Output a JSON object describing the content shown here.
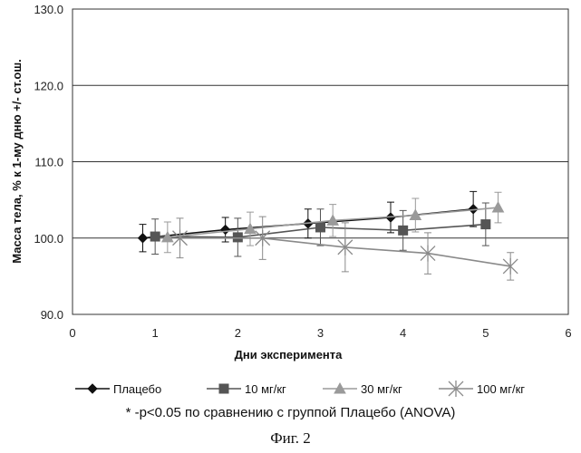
{
  "chart_data": {
    "type": "line",
    "title": "",
    "xlabel": "Дни эксперимента",
    "ylabel": "Масса тела, % к 1-му дню +/- ст.ош.",
    "xlim": [
      0,
      6
    ],
    "ylim": [
      90,
      130
    ],
    "x_ticks": [
      "0",
      "1",
      "2",
      "3",
      "4",
      "5",
      "6"
    ],
    "y_ticks": [
      "90.0",
      "100.0",
      "110.0",
      "120.0",
      "130.0"
    ],
    "grid": "horizontal",
    "legend_position": "bottom",
    "series": [
      {
        "name": "Плацебо",
        "marker": "diamond",
        "color": "#111111",
        "x": [
          0.85,
          1.85,
          2.85,
          3.85,
          4.85
        ],
        "y": [
          100.0,
          101.1,
          101.9,
          102.7,
          103.8
        ],
        "err": [
          1.8,
          1.6,
          1.9,
          2.0,
          2.3
        ]
      },
      {
        "name": "10 мг/кг",
        "marker": "square",
        "color": "#555555",
        "x": [
          1.0,
          2.0,
          3.0,
          4.0,
          5.0
        ],
        "y": [
          100.2,
          100.1,
          101.4,
          101.0,
          101.8
        ],
        "err": [
          2.3,
          2.5,
          2.4,
          2.6,
          2.8
        ]
      },
      {
        "name": "30 мг/кг",
        "marker": "triangle",
        "color": "#9a9a9a",
        "x": [
          1.15,
          2.15,
          3.15,
          4.15,
          5.15
        ],
        "y": [
          100.1,
          101.2,
          102.3,
          103.0,
          104.0
        ],
        "err": [
          2.0,
          2.2,
          2.1,
          2.2,
          2.0
        ]
      },
      {
        "name": "100 мг/кг",
        "marker": "asterisk",
        "color": "#8a8a8a",
        "x": [
          1.3,
          2.3,
          3.3,
          4.3,
          5.3
        ],
        "y": [
          100.0,
          100.0,
          98.8,
          98.0,
          96.3
        ],
        "err": [
          2.6,
          2.8,
          3.2,
          2.7,
          1.8
        ]
      }
    ]
  },
  "footnote": "* -p<0.05 по сравнению с группой Плацебо (ANOVA)",
  "caption": "Фиг. 2"
}
